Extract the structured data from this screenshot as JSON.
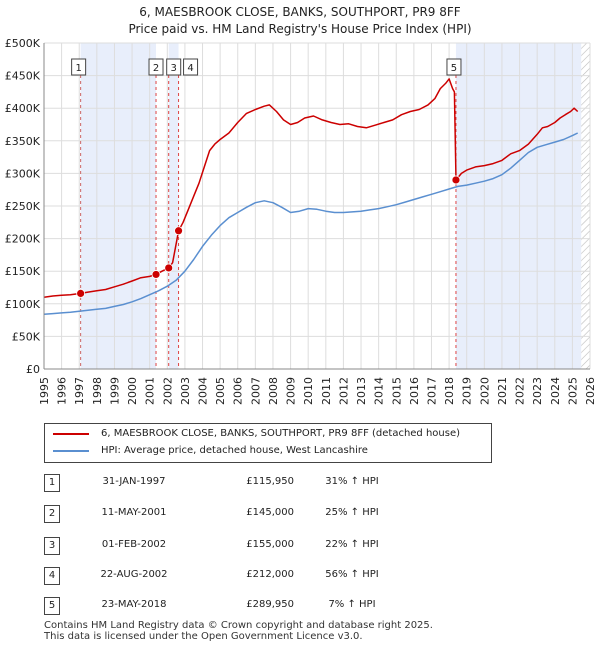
{
  "header": {
    "title_line1": "6, MAESBROOK CLOSE, BANKS, SOUTHPORT, PR9 8FF",
    "title_line2": "Price paid vs. HM Land Registry's House Price Index (HPI)"
  },
  "chart_data": {
    "type": "line",
    "title": "6, MAESBROOK CLOSE, BANKS, SOUTHPORT, PR9 8FF",
    "subtitle": "Price paid vs. HM Land Registry's House Price Index (HPI)",
    "xlabel": "",
    "ylabel": "",
    "xlim": [
      1995,
      2026
    ],
    "ylim": [
      0,
      500000
    ],
    "x_ticks": [
      "1995",
      "1996",
      "1997",
      "1998",
      "1999",
      "2000",
      "2001",
      "2002",
      "2003",
      "2004",
      "2005",
      "2006",
      "2007",
      "2008",
      "2009",
      "2010",
      "2011",
      "2012",
      "2013",
      "2014",
      "2015",
      "2016",
      "2017",
      "2018",
      "2019",
      "2020",
      "2021",
      "2022",
      "2023",
      "2024",
      "2025",
      "2026"
    ],
    "y_ticks": [
      {
        "value": 0,
        "label": "£0"
      },
      {
        "value": 50000,
        "label": "£50K"
      },
      {
        "value": 100000,
        "label": "£100K"
      },
      {
        "value": 150000,
        "label": "£150K"
      },
      {
        "value": 200000,
        "label": "£200K"
      },
      {
        "value": 250000,
        "label": "£250K"
      },
      {
        "value": 300000,
        "label": "£300K"
      },
      {
        "value": 350000,
        "label": "£350K"
      },
      {
        "value": 400000,
        "label": "£400K"
      },
      {
        "value": 450000,
        "label": "£450K"
      },
      {
        "value": 500000,
        "label": "£500K"
      }
    ],
    "grid": true,
    "shaded_ranges": [
      [
        1997.08,
        2001.36
      ],
      [
        2002.08,
        2002.64
      ],
      [
        2018.39,
        2025.5
      ]
    ],
    "future_hatch_from": 2025.5,
    "series": [
      {
        "name": "6, MAESBROOK CLOSE, BANKS, SOUTHPORT, PR9 8FF (detached house)",
        "color": "#cc0000",
        "x": [
          1995.0,
          1995.5,
          1996.0,
          1996.5,
          1997.08,
          1997.5,
          1998.0,
          1998.5,
          1999.0,
          1999.5,
          2000.0,
          2000.5,
          2001.0,
          2001.36,
          2001.7,
          2002.08,
          2002.3,
          2002.64,
          2002.9,
          2003.2,
          2003.5,
          2003.8,
          2004.1,
          2004.4,
          2004.7,
          2005.0,
          2005.5,
          2006.0,
          2006.5,
          2007.0,
          2007.5,
          2007.8,
          2008.2,
          2008.6,
          2009.0,
          2009.4,
          2009.8,
          2010.3,
          2010.8,
          2011.3,
          2011.8,
          2012.3,
          2012.8,
          2013.3,
          2013.8,
          2014.3,
          2014.8,
          2015.3,
          2015.8,
          2016.3,
          2016.8,
          2017.2,
          2017.5,
          2017.8,
          2018.0,
          2018.2,
          2018.3,
          2018.39,
          2018.7,
          2019.0,
          2019.5,
          2020.0,
          2020.5,
          2021.0,
          2021.5,
          2022.0,
          2022.5,
          2023.0,
          2023.3,
          2023.6,
          2024.0,
          2024.3,
          2024.6,
          2024.9,
          2025.1,
          2025.3
        ],
        "values": [
          110000,
          112000,
          113000,
          114000,
          115950,
          118000,
          120000,
          122000,
          126000,
          130000,
          135000,
          140000,
          142000,
          145000,
          150000,
          155000,
          163000,
          212000,
          225000,
          245000,
          265000,
          285000,
          310000,
          335000,
          345000,
          352000,
          362000,
          378000,
          392000,
          398000,
          403000,
          405000,
          395000,
          382000,
          375000,
          378000,
          385000,
          388000,
          382000,
          378000,
          375000,
          376000,
          372000,
          370000,
          374000,
          378000,
          382000,
          390000,
          395000,
          398000,
          405000,
          415000,
          430000,
          438000,
          445000,
          430000,
          425000,
          289950,
          300000,
          305000,
          310000,
          312000,
          315000,
          320000,
          330000,
          335000,
          345000,
          360000,
          370000,
          372000,
          378000,
          385000,
          390000,
          395000,
          400000,
          395000
        ]
      },
      {
        "name": "HPI: Average price, detached house, West Lancashire",
        "color": "#5a8fd0",
        "x": [
          1995.0,
          1995.5,
          1996.0,
          1996.5,
          1997.0,
          1997.5,
          1998.0,
          1998.5,
          1999.0,
          1999.5,
          2000.0,
          2000.5,
          2001.0,
          2001.5,
          2002.0,
          2002.5,
          2003.0,
          2003.5,
          2004.0,
          2004.5,
          2005.0,
          2005.5,
          2006.0,
          2006.5,
          2007.0,
          2007.5,
          2008.0,
          2008.5,
          2009.0,
          2009.5,
          2010.0,
          2010.5,
          2011.0,
          2011.5,
          2012.0,
          2012.5,
          2013.0,
          2013.5,
          2014.0,
          2014.5,
          2015.0,
          2015.5,
          2016.0,
          2016.5,
          2017.0,
          2017.5,
          2018.0,
          2018.5,
          2019.0,
          2019.5,
          2020.0,
          2020.5,
          2021.0,
          2021.5,
          2022.0,
          2022.5,
          2023.0,
          2023.5,
          2024.0,
          2024.5,
          2025.0,
          2025.3
        ],
        "values": [
          84000,
          85000,
          86000,
          87000,
          88500,
          90000,
          91500,
          93000,
          96000,
          99000,
          103000,
          108000,
          114000,
          120000,
          127000,
          136000,
          150000,
          168000,
          188000,
          205000,
          220000,
          232000,
          240000,
          248000,
          255000,
          258000,
          255000,
          248000,
          240000,
          242000,
          246000,
          245000,
          242000,
          240000,
          240000,
          241000,
          242000,
          244000,
          246000,
          249000,
          252000,
          256000,
          260000,
          264000,
          268000,
          272000,
          276000,
          280000,
          282000,
          285000,
          288000,
          292000,
          298000,
          308000,
          320000,
          332000,
          340000,
          344000,
          348000,
          352000,
          358000,
          362000
        ]
      }
    ],
    "markers": [
      {
        "id": "1",
        "x": 1997.08,
        "value": 115950
      },
      {
        "id": "2",
        "x": 2001.36,
        "value": 145000
      },
      {
        "id": "3",
        "x": 2002.08,
        "value": 155000
      },
      {
        "id": "4",
        "x": 2002.64,
        "value": 212000
      },
      {
        "id": "5",
        "x": 2018.39,
        "value": 289950
      }
    ]
  },
  "legend": {
    "items": [
      {
        "label": "6, MAESBROOK CLOSE, BANKS, SOUTHPORT, PR9 8FF (detached house)",
        "color": "#cc0000"
      },
      {
        "label": "HPI: Average price, detached house, West Lancashire",
        "color": "#5a8fd0"
      }
    ]
  },
  "transactions": [
    {
      "num": "1",
      "date": "31-JAN-1997",
      "price": "£115,950",
      "hpi": "31% ↑ HPI"
    },
    {
      "num": "2",
      "date": "11-MAY-2001",
      "price": "£145,000",
      "hpi": "25% ↑ HPI"
    },
    {
      "num": "3",
      "date": "01-FEB-2002",
      "price": "£155,000",
      "hpi": "22% ↑ HPI"
    },
    {
      "num": "4",
      "date": "22-AUG-2002",
      "price": "£212,000",
      "hpi": "56% ↑ HPI"
    },
    {
      "num": "5",
      "date": "23-MAY-2018",
      "price": "£289,950",
      "hpi": "7% ↑ HPI"
    }
  ],
  "footer": {
    "line1": "Contains HM Land Registry data © Crown copyright and database right 2025.",
    "line2": "This data is licensed under the Open Government Licence v3.0."
  }
}
